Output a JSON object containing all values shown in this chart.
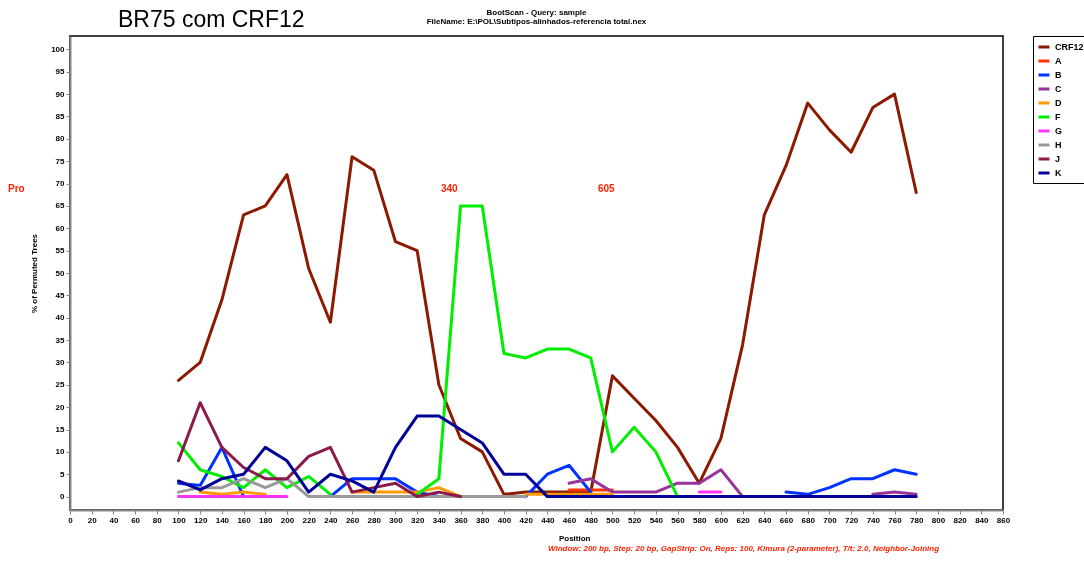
{
  "chart_data": {
    "type": "line",
    "title": "BootScan - Query: sample",
    "subtitle": "FileName: E:\\POL\\Subtipos-alinhados-referencia total.nex",
    "xlabel": "Position",
    "ylabel": "% of Permuted Trees",
    "annotations": [
      "BR75 com CRF12",
      "Pro",
      "340",
      "605",
      "Window: 200 bp, Step: 20 bp, GapStrip: On, Reps: 100, Kimura (2-parameter), T/t: 2.0, Neighbor-Joining"
    ],
    "x": [
      100,
      120,
      140,
      160,
      180,
      200,
      220,
      240,
      260,
      280,
      300,
      320,
      340,
      360,
      380,
      400,
      420,
      440,
      460,
      480,
      500,
      520,
      540,
      560,
      580,
      600,
      620,
      640,
      660,
      680,
      700,
      720,
      740,
      760,
      780
    ],
    "series": [
      {
        "name": "CRF12",
        "color": "#8b1a00",
        "values": [
          26,
          30,
          44,
          63,
          65,
          72,
          51,
          39,
          76,
          73,
          57,
          55,
          25,
          13,
          10,
          0.5,
          1,
          1,
          1,
          1,
          27,
          22,
          17,
          11,
          3,
          13,
          34,
          63,
          74,
          88,
          82,
          77,
          87,
          90,
          68
        ]
      },
      {
        "name": "A",
        "color": "#ff3300",
        "values": [
          null,
          null,
          null,
          null,
          null,
          null,
          null,
          null,
          null,
          null,
          null,
          null,
          null,
          null,
          null,
          null,
          null,
          null,
          1.5,
          1.5,
          1.5,
          null,
          null,
          null,
          null,
          null,
          null,
          null,
          null,
          null,
          null,
          null,
          null,
          null,
          null
        ]
      },
      {
        "name": "B",
        "color": "#0033ff",
        "values": [
          3,
          2.5,
          11,
          0,
          null,
          null,
          null,
          0,
          4,
          4,
          4,
          1,
          0,
          null,
          null,
          null,
          0,
          5,
          7,
          1,
          null,
          null,
          null,
          null,
          null,
          null,
          null,
          null,
          1,
          0.5,
          2,
          4,
          4,
          6,
          5
        ]
      },
      {
        "name": "C",
        "color": "#993399",
        "values": [
          null,
          null,
          null,
          null,
          null,
          null,
          null,
          null,
          null,
          null,
          null,
          null,
          null,
          null,
          null,
          null,
          null,
          null,
          3,
          4,
          1,
          1,
          1,
          3,
          3,
          6,
          0,
          null,
          null,
          null,
          null,
          null,
          0.5,
          1,
          0.5
        ]
      },
      {
        "name": "D",
        "color": "#ff9900",
        "values": [
          null,
          1,
          0.5,
          1,
          0.5,
          null,
          null,
          null,
          1,
          1,
          1,
          1,
          2,
          0,
          null,
          null,
          0.5,
          0.5,
          0.5,
          0.5,
          0.5,
          null,
          null,
          null,
          null,
          null,
          null,
          null,
          null,
          null,
          null,
          null,
          null,
          null,
          null
        ]
      },
      {
        "name": "F",
        "color": "#00ee00",
        "values": [
          12,
          6,
          4.5,
          2,
          6,
          2,
          4.5,
          0.5,
          null,
          null,
          null,
          0.5,
          4,
          65,
          65,
          32,
          31,
          33,
          33,
          31,
          10,
          15.5,
          10,
          0,
          null,
          null,
          null,
          null,
          null,
          null,
          null,
          null,
          null,
          null,
          null
        ]
      },
      {
        "name": "G",
        "color": "#ff33ff",
        "values": [
          0,
          0,
          0,
          0,
          0,
          0,
          null,
          null,
          null,
          null,
          null,
          null,
          null,
          null,
          null,
          null,
          null,
          null,
          null,
          null,
          null,
          null,
          null,
          null,
          1,
          1,
          null,
          null,
          null,
          null,
          null,
          null,
          null,
          null,
          null
        ]
      },
      {
        "name": "H",
        "color": "#999999",
        "values": [
          1,
          2,
          2,
          4,
          2,
          4,
          0,
          0,
          0,
          0,
          0,
          0,
          0,
          0,
          0,
          0,
          0,
          null,
          null,
          null,
          null,
          null,
          null,
          null,
          null,
          null,
          null,
          null,
          null,
          null,
          null,
          null,
          null,
          null,
          null
        ]
      },
      {
        "name": "J",
        "color": "#8b1a4a",
        "values": [
          8,
          21,
          11,
          6.5,
          4,
          4,
          9,
          11,
          1,
          2,
          3,
          0,
          1,
          0,
          null,
          null,
          null,
          null,
          null,
          null,
          null,
          null,
          null,
          null,
          null,
          null,
          null,
          null,
          null,
          null,
          null,
          null,
          null,
          null,
          null
        ]
      },
      {
        "name": "K",
        "color": "#000099",
        "values": [
          3.5,
          1.5,
          4,
          5,
          11,
          8,
          1,
          5,
          3.5,
          1,
          11,
          18,
          18,
          15,
          12,
          5,
          5,
          0,
          0,
          0,
          0,
          0,
          0,
          0,
          0,
          0,
          0,
          0,
          0,
          0,
          0,
          0,
          0,
          0,
          0
        ]
      }
    ],
    "xlim": [
      0,
      860
    ],
    "xticks": [
      0,
      20,
      40,
      60,
      80,
      100,
      120,
      140,
      160,
      180,
      200,
      220,
      240,
      260,
      280,
      300,
      320,
      340,
      360,
      380,
      400,
      420,
      440,
      460,
      480,
      500,
      520,
      540,
      560,
      580,
      600,
      620,
      640,
      660,
      680,
      700,
      720,
      740,
      760,
      780,
      800,
      820,
      840,
      860
    ],
    "ylim": [
      -3,
      103
    ],
    "yticks": [
      0,
      5,
      10,
      15,
      20,
      25,
      30,
      35,
      40,
      45,
      50,
      55,
      60,
      65,
      70,
      75,
      80,
      85,
      90,
      95,
      100
    ],
    "legend": "top right",
    "marker": "none",
    "line_style": "solid"
  }
}
